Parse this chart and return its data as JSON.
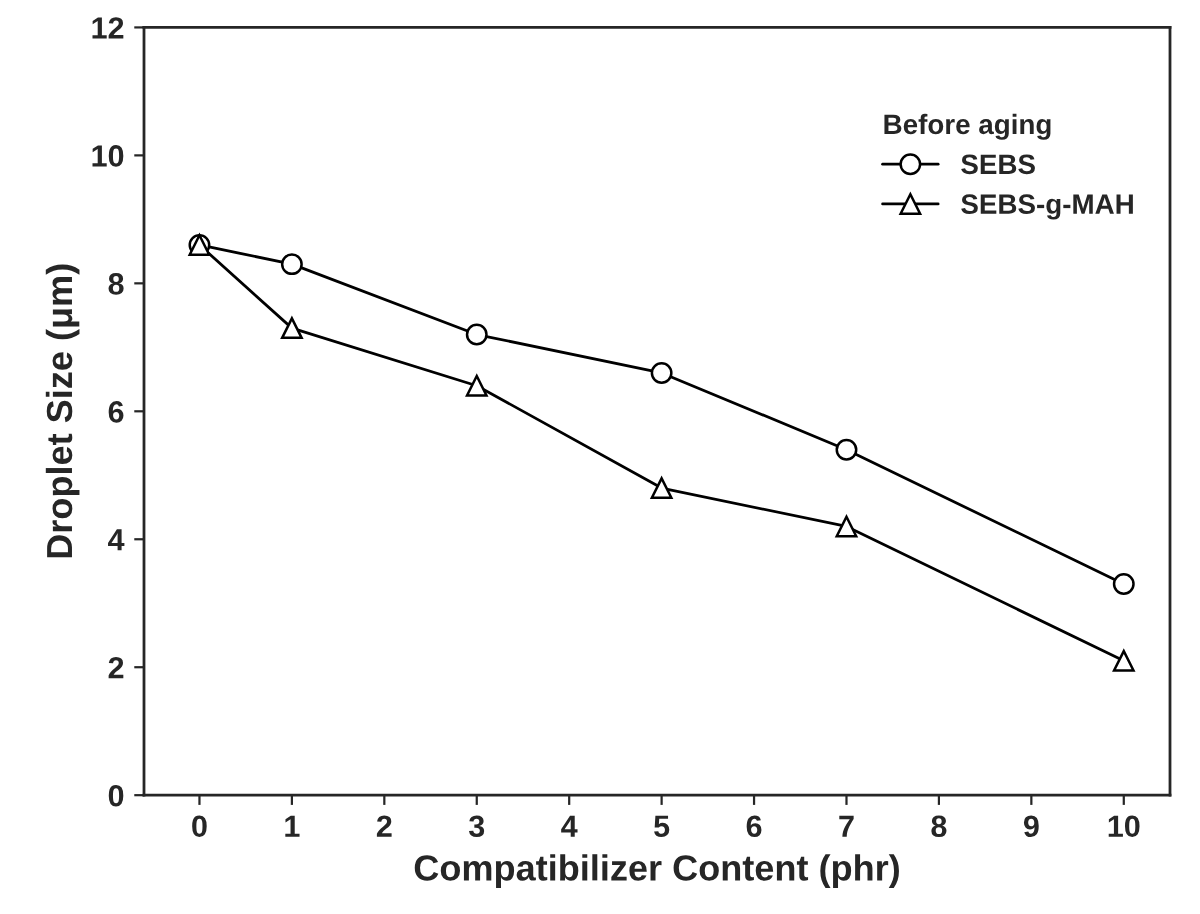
{
  "chart_data": {
    "type": "line",
    "xlabel": "Compatibilizer Content (phr)",
    "ylabel": "Droplet Size (μm)",
    "legend_title": "Before aging",
    "x": [
      0,
      1,
      3,
      5,
      7,
      10
    ],
    "series": [
      {
        "name": "SEBS",
        "color": "#000000",
        "marker": "circle",
        "values": [
          8.6,
          8.3,
          7.2,
          6.6,
          5.4,
          3.3
        ]
      },
      {
        "name": "SEBS-g-MAH",
        "color": "#000000",
        "marker": "triangle",
        "values": [
          8.6,
          7.3,
          6.4,
          4.8,
          4.2,
          2.1
        ]
      }
    ],
    "xlim": [
      -0.6,
      10.5
    ],
    "xticks": [
      0,
      1,
      2,
      3,
      4,
      5,
      6,
      7,
      8,
      9,
      10
    ],
    "ylim": [
      0,
      12
    ],
    "yticks": [
      0,
      2,
      4,
      6,
      8,
      10,
      12
    ],
    "grid": false,
    "legend": "top right",
    "line_style": "solid"
  }
}
